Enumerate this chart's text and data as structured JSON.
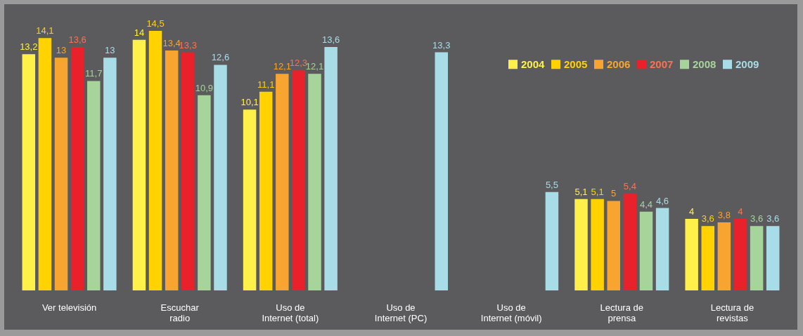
{
  "chart_data": {
    "type": "bar",
    "categories": [
      "Ver televisión",
      "Escuchar\nradio",
      "Uso de\nInternet (total)",
      "Uso de\nInternet (PC)",
      "Uso de\nInternet (móvil)",
      "Lectura de\nprensa",
      "Lectura de\nrevistas"
    ],
    "series": [
      {
        "name": "2004",
        "color": "#fff04a",
        "values": [
          13.2,
          14,
          10.1,
          null,
          null,
          5.1,
          4
        ],
        "value_labels": [
          "13,2",
          "14",
          "10,1",
          null,
          null,
          "5,1",
          "4"
        ]
      },
      {
        "name": "2005",
        "color": "#ffd200",
        "values": [
          14.1,
          14.5,
          11.1,
          null,
          null,
          5.1,
          3.6
        ],
        "value_labels": [
          "14,1",
          "14,5",
          "11,1",
          null,
          null,
          "5,1",
          "3,6"
        ]
      },
      {
        "name": "2006",
        "color": "#f7a530",
        "values": [
          13,
          13.4,
          12.1,
          null,
          null,
          5,
          3.8
        ],
        "value_labels": [
          "13",
          "13,4",
          "12,1",
          null,
          null,
          "5",
          "3,8"
        ]
      },
      {
        "name": "2007",
        "color": "#e8212a",
        "values": [
          13.6,
          13.3,
          12.3,
          null,
          null,
          5.4,
          4
        ],
        "value_labels": [
          "13,6",
          "13,3",
          "12,3",
          null,
          null,
          "5,4",
          "4"
        ]
      },
      {
        "name": "2008",
        "color": "#a6d49a",
        "values": [
          11.7,
          10.9,
          12.1,
          null,
          null,
          4.4,
          3.6
        ],
        "value_labels": [
          "11,7",
          "10,9",
          "12,1",
          null,
          null,
          "4,4",
          "3,6"
        ]
      },
      {
        "name": "2009",
        "color": "#a8dde8",
        "values": [
          13,
          12.6,
          13.6,
          13.3,
          5.5,
          4.6,
          3.6
        ],
        "value_labels": [
          "13",
          "12,6",
          "13,6",
          "13,3",
          "5,5",
          "4,6",
          "3,6"
        ]
      }
    ],
    "grid": false,
    "legend": "top right"
  }
}
